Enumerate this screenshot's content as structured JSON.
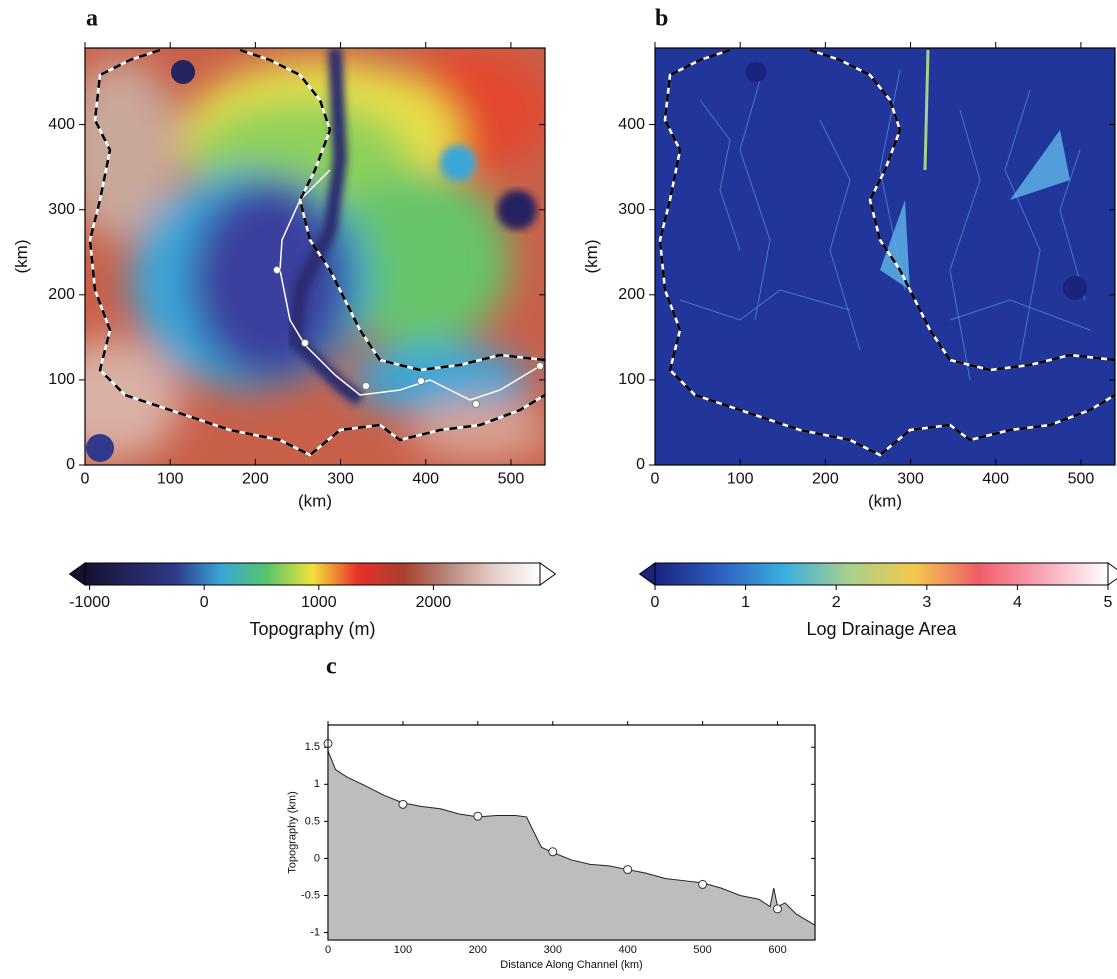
{
  "chart_data": [
    {
      "type": "map",
      "panel": "a",
      "xlabel": "(km)",
      "ylabel": "(km)",
      "xlim": [
        0,
        540
      ],
      "xticks": [
        0,
        100,
        200,
        300,
        400,
        500
      ],
      "ylim": [
        0,
        490
      ],
      "yticks": [
        0,
        100,
        200,
        300,
        400
      ],
      "colorbar": {
        "label": "Topography (m)",
        "lim": [
          -1040,
          2930
        ],
        "ticks": [
          -1000,
          0,
          1000,
          2000
        ],
        "colors": [
          "#141230",
          "#26245e",
          "#2f3a8c",
          "#3aa6d8",
          "#57c46a",
          "#f2e23a",
          "#e8302a",
          "#a8402e",
          "#b98a7e",
          "#e6cfcb",
          "#ffffff"
        ]
      }
    },
    {
      "type": "map",
      "panel": "b",
      "xlabel": "(km)",
      "ylabel": "(km)",
      "xlim": [
        0,
        540
      ],
      "xticks": [
        0,
        100,
        200,
        300,
        400,
        500
      ],
      "ylim": [
        0,
        490
      ],
      "yticks": [
        0,
        100,
        200,
        300,
        400
      ],
      "colorbar": {
        "label": "Log Drainage Area",
        "lim": [
          0,
          5
        ],
        "ticks": [
          0,
          1,
          2,
          3,
          4,
          5
        ],
        "colors": [
          "#1a237e",
          "#2e5fbf",
          "#3aaee0",
          "#a8d08d",
          "#f2c94c",
          "#ef5d6a",
          "#f7a8b8",
          "#ffffff"
        ]
      }
    },
    {
      "type": "area",
      "panel": "c",
      "xlabel": "Distance Along Channel (km)",
      "ylabel": "Topography (km)",
      "xlim": [
        0,
        650
      ],
      "xticks": [
        0,
        100,
        200,
        300,
        400,
        500,
        600
      ],
      "ylim": [
        -1.1,
        1.8
      ],
      "yticks": [
        -1,
        -0.5,
        0,
        0.5,
        1,
        1.5
      ],
      "color": "#bdbdbd",
      "x": [
        0,
        10,
        25,
        50,
        75,
        100,
        125,
        150,
        175,
        200,
        225,
        250,
        265,
        275,
        285,
        300,
        325,
        350,
        375,
        400,
        425,
        450,
        475,
        500,
        525,
        550,
        575,
        590,
        595,
        600,
        610,
        625,
        650
      ],
      "values": [
        1.45,
        1.2,
        1.1,
        0.98,
        0.85,
        0.75,
        0.7,
        0.67,
        0.6,
        0.56,
        0.58,
        0.58,
        0.56,
        0.35,
        0.15,
        0.08,
        -0.02,
        -0.08,
        -0.1,
        -0.15,
        -0.2,
        -0.27,
        -0.3,
        -0.33,
        -0.4,
        -0.5,
        -0.55,
        -0.65,
        -0.4,
        -0.65,
        -0.6,
        -0.75,
        -0.9
      ],
      "markers": {
        "x": [
          0,
          100,
          200,
          300,
          400,
          500,
          600
        ],
        "values": [
          1.55,
          0.73,
          0.57,
          0.09,
          -0.15,
          -0.35,
          -0.68
        ]
      }
    }
  ]
}
